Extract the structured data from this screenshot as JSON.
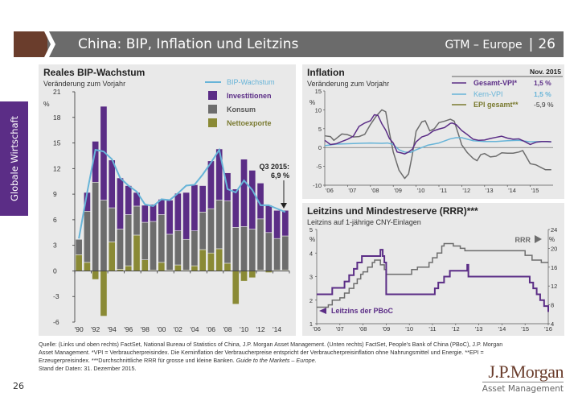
{
  "header": {
    "title": "China: BIP, Inflation und Leitzins",
    "series_label": "GTM – Europe",
    "separator": "|",
    "page": "26"
  },
  "sidebar": {
    "label": "Globale Wirtschaft"
  },
  "colors": {
    "brown": "#6a3d2c",
    "header_gray": "#6b6b6b",
    "purple": "#5b2d86",
    "gray": "#6d6d6d",
    "olive": "#8a8a35",
    "light_blue": "#67b4d8",
    "panel_bg": "#e9e9e9"
  },
  "chart_data": [
    {
      "id": "gdp",
      "type": "bar",
      "title": "Reales BIP-Wachstum",
      "subtitle": "Veränderung zum Vorjahr",
      "ylabel": "%",
      "ylim": [
        -6,
        21
      ],
      "yticks": [
        -6,
        -3,
        0,
        3,
        6,
        9,
        12,
        15,
        18,
        21
      ],
      "ytick_labels": [
        "-6",
        "-3",
        "0",
        "3",
        "6",
        "9",
        "12",
        "15",
        "18",
        "21"
      ],
      "xtick_labels": [
        "'90",
        "'92",
        "'94",
        "'96",
        "'98",
        "'00",
        "'02",
        "'04",
        "'06",
        "'08",
        "'10",
        "'12",
        "'14"
      ],
      "categories": [
        1990,
        1991,
        1992,
        1993,
        1994,
        1995,
        1996,
        1997,
        1998,
        1999,
        2000,
        2001,
        2002,
        2003,
        2004,
        2005,
        2006,
        2007,
        2008,
        2009,
        2010,
        2011,
        2012,
        2013,
        2014,
        2015
      ],
      "stacked": true,
      "series": [
        {
          "name": "Nettoexporte",
          "color": "#8a8a35",
          "values": [
            1.9,
            1.0,
            -1.0,
            -5.3,
            3.4,
            0.2,
            0.6,
            4.2,
            1.3,
            0.1,
            1.0,
            0.1,
            0.7,
            0.1,
            0.6,
            2.5,
            2.1,
            2.6,
            0.9,
            -3.9,
            -1.2,
            -0.8,
            0.1,
            -0.2,
            0.1,
            0.1
          ]
        },
        {
          "name": "Konsum",
          "color": "#6d6d6d",
          "values": [
            1.8,
            6.0,
            10.4,
            8.3,
            4.0,
            4.7,
            6.0,
            3.4,
            4.4,
            5.7,
            5.6,
            4.2,
            4.0,
            3.6,
            4.1,
            4.4,
            5.2,
            5.7,
            7.3,
            5.1,
            5.2,
            4.9,
            6.0,
            4.5,
            3.7,
            4.0
          ]
        },
        {
          "name": "Investitionen",
          "color": "#5b2d86",
          "values": [
            0.0,
            2.2,
            4.8,
            11.0,
            5.6,
            6.0,
            3.4,
            1.6,
            2.0,
            2.0,
            1.8,
            4.0,
            4.4,
            5.5,
            5.4,
            3.1,
            5.6,
            6.0,
            3.3,
            4.5,
            7.9,
            6.9,
            4.2,
            3.2,
            3.3,
            3.0
          ]
        }
      ],
      "line": {
        "name": "BIP-Wachstum",
        "color": "#67b4d8",
        "values": [
          3.8,
          9.2,
          14.2,
          14.0,
          13.1,
          10.9,
          10.0,
          9.3,
          7.8,
          7.6,
          8.4,
          8.3,
          9.1,
          10.0,
          10.1,
          11.3,
          12.7,
          14.2,
          9.6,
          9.2,
          10.6,
          9.5,
          7.7,
          7.7,
          7.3,
          6.9
        ]
      },
      "legend": [
        "BIP-Wachstum",
        "Investitionen",
        "Konsum",
        "Nettoexporte"
      ],
      "legend_placement": "top-right",
      "annotation": {
        "line1": "Q3 2015:",
        "line2": "6,9 %"
      }
    },
    {
      "id": "inflation",
      "type": "line",
      "title": "Inflation",
      "subtitle": "Veränderung zum Vorjahr",
      "ylabel": "%",
      "ylim": [
        -10,
        15
      ],
      "yticks": [
        -10,
        -5,
        0,
        5,
        10,
        15
      ],
      "ytick_labels": [
        "-10",
        "-5",
        "0",
        "5",
        "10",
        "15"
      ],
      "xlim": [
        2006,
        2016
      ],
      "xtick_labels": [
        "'06",
        "'07",
        "'08",
        "'09",
        "'10",
        "'11",
        "'12",
        "'13",
        "'14",
        "'15"
      ],
      "table_header": "Nov. 2015",
      "legend_placement": "top-right",
      "series": [
        {
          "name": "Gesamt-VPI*",
          "latest": "1,5 %",
          "color": "#5b2d86",
          "x": [
            2006.0,
            2006.25,
            2006.5,
            2006.75,
            2007.0,
            2007.25,
            2007.5,
            2007.75,
            2008.0,
            2008.17,
            2008.33,
            2008.5,
            2008.67,
            2008.83,
            2009.0,
            2009.17,
            2009.33,
            2009.5,
            2009.67,
            2009.83,
            2010.0,
            2010.25,
            2010.5,
            2010.75,
            2011.0,
            2011.25,
            2011.5,
            2011.58,
            2011.75,
            2012.0,
            2012.25,
            2012.5,
            2012.75,
            2013.0,
            2013.25,
            2013.5,
            2013.75,
            2014.0,
            2014.25,
            2014.5,
            2014.75,
            2015.0,
            2015.25,
            2015.5,
            2015.75,
            2015.92
          ],
          "y": [
            1.9,
            0.8,
            1.0,
            1.6,
            2.2,
            3.0,
            5.6,
            6.5,
            7.1,
            8.7,
            8.5,
            6.3,
            4.6,
            2.4,
            1.2,
            -1.2,
            -1.4,
            -1.7,
            -1.2,
            -0.5,
            1.5,
            2.8,
            3.3,
            4.4,
            4.9,
            5.3,
            6.4,
            6.5,
            6.1,
            4.5,
            3.4,
            2.2,
            1.9,
            2.0,
            2.4,
            2.7,
            3.0,
            2.5,
            2.2,
            2.3,
            1.6,
            0.8,
            1.4,
            1.6,
            1.6,
            1.5
          ]
        },
        {
          "name": "Kern-VPI",
          "latest": "1,5 %",
          "color": "#67b4d8",
          "x": [
            2006.0,
            2006.5,
            2007.0,
            2007.5,
            2008.0,
            2008.5,
            2008.75,
            2009.0,
            2009.25,
            2009.5,
            2009.75,
            2010.0,
            2010.5,
            2011.0,
            2011.5,
            2011.75,
            2012.0,
            2012.5,
            2013.0,
            2013.5,
            2014.0,
            2014.5,
            2015.0,
            2015.5,
            2015.92
          ],
          "y": [
            0.5,
            0.9,
            1.0,
            1.1,
            1.2,
            1.1,
            1.2,
            0.8,
            -0.6,
            -1.2,
            -1.3,
            -0.6,
            0.6,
            1.2,
            2.3,
            2.6,
            2.6,
            1.8,
            1.6,
            1.6,
            1.8,
            1.9,
            1.5,
            1.6,
            1.5
          ]
        },
        {
          "name": "EPI gesamt**",
          "latest": "-5,9 %",
          "color": "#6d6d6d",
          "x": [
            2006.0,
            2006.25,
            2006.4,
            2006.75,
            2007.0,
            2007.25,
            2007.5,
            2007.75,
            2008.0,
            2008.25,
            2008.5,
            2008.67,
            2008.83,
            2009.0,
            2009.25,
            2009.5,
            2009.67,
            2009.83,
            2010.0,
            2010.25,
            2010.4,
            2010.6,
            2010.8,
            2011.0,
            2011.25,
            2011.5,
            2011.67,
            2011.83,
            2012.0,
            2012.25,
            2012.5,
            2012.67,
            2012.83,
            2013.0,
            2013.25,
            2013.5,
            2013.75,
            2014.0,
            2014.25,
            2014.5,
            2014.67,
            2014.83,
            2015.0,
            2015.25,
            2015.5,
            2015.67,
            2015.92
          ],
          "y": [
            3.1,
            2.9,
            1.9,
            3.6,
            3.4,
            2.8,
            2.9,
            3.5,
            6.1,
            8.3,
            10.0,
            9.5,
            4.0,
            -1.2,
            -6.0,
            -8.2,
            -7.0,
            -2.1,
            4.3,
            6.8,
            7.1,
            4.4,
            5.0,
            6.6,
            7.0,
            7.5,
            7.0,
            4.0,
            0.7,
            -1.4,
            -2.9,
            -3.5,
            -1.9,
            -1.6,
            -2.5,
            -2.3,
            -1.4,
            -1.5,
            -1.5,
            -1.2,
            -0.8,
            -2.5,
            -4.3,
            -4.6,
            -5.4,
            -5.9,
            -5.9
          ]
        }
      ]
    },
    {
      "id": "policy",
      "type": "line",
      "title": "Leitzins und Mindestreserve (RRR)***",
      "subtitle": "Leitzins auf 1-jährige CNY-Einlagen",
      "ylabel": "%",
      "y2label": "%",
      "ylim": [
        1,
        5
      ],
      "yticks": [
        1,
        2,
        3,
        4,
        5
      ],
      "ytick_labels": [
        "1",
        "2",
        "3",
        "4",
        "5"
      ],
      "y2lim": [
        4,
        24
      ],
      "y2ticks": [
        4,
        8,
        12,
        16,
        20,
        24
      ],
      "y2tick_labels": [
        "4",
        "8",
        "12",
        "16",
        "20",
        "24"
      ],
      "xlim": [
        2006,
        2016
      ],
      "xtick_labels": [
        "'06",
        "'07",
        "'08",
        "'09",
        "'10",
        "'11",
        "'12",
        "'13",
        "'14",
        "'15",
        "'16"
      ],
      "series": [
        {
          "name": "Leitzins der PBoC",
          "axis": "left",
          "color": "#5b2d86",
          "step": true,
          "x": [
            2006.0,
            2006.67,
            2007.2,
            2007.4,
            2007.6,
            2007.75,
            2007.95,
            2008.75,
            2008.85,
            2008.92,
            2009.0,
            2010.8,
            2011.1,
            2011.25,
            2011.5,
            2011.75,
            2012.5,
            2012.55,
            2014.85,
            2015.2,
            2015.35,
            2015.5,
            2015.65,
            2015.82,
            2016.0
          ],
          "y": [
            2.25,
            2.52,
            2.79,
            3.06,
            3.33,
            3.6,
            3.87,
            4.14,
            3.87,
            3.6,
            2.25,
            2.25,
            2.5,
            2.75,
            3.0,
            3.25,
            3.5,
            3.0,
            3.0,
            2.75,
            2.5,
            2.25,
            2.0,
            1.75,
            1.5
          ]
        },
        {
          "name": "RRR",
          "axis": "right",
          "color": "#6d6d6d",
          "step": true,
          "x": [
            2006.0,
            2006.5,
            2006.67,
            2007.0,
            2007.2,
            2007.4,
            2007.6,
            2007.75,
            2007.9,
            2008.0,
            2008.2,
            2008.4,
            2008.5,
            2008.75,
            2008.92,
            2009.0,
            2010.0,
            2010.1,
            2010.35,
            2010.85,
            2011.0,
            2011.2,
            2011.4,
            2011.5,
            2011.9,
            2012.2,
            2012.4,
            2014.8,
            2015.0,
            2015.3,
            2015.7,
            2016.0
          ],
          "y": [
            7.5,
            8.0,
            9.0,
            9.5,
            10.5,
            11.5,
            12.5,
            13.5,
            14.5,
            15.0,
            16.0,
            17.0,
            17.5,
            16.5,
            15.5,
            14.5,
            14.5,
            15.5,
            16.0,
            17.0,
            18.0,
            19.0,
            20.5,
            21.0,
            20.5,
            20.0,
            19.5,
            19.5,
            18.5,
            17.5,
            17.0,
            17.0
          ]
        }
      ],
      "labels": {
        "rrr": "RRR",
        "leitzins": "Leitzins der PBoC"
      }
    }
  ],
  "footer": {
    "source_main": "Quelle: (Links und oben rechts) FactSet, National Bureau of Statistics of China, J.P. Morgan Asset Management. (Unten rechts) FactSet, People's Bank of China (PBoC), J.P. Morgan Asset Management. *VPI = Verbraucherpreisindex. Die Kerninflation der Verbraucherpreise entspricht der Verbraucherpreisinflation ohne Nahrungsmittel und Energie. **EPI = Erzeugerpreisindex. ***Durchschnittliche RRR für grosse und kleine Banken. ",
    "source_italic": "Guide to the Markets – Europe.",
    "date": "Stand der Daten: 31. Dezember 2015."
  },
  "page_number": "26",
  "logo": {
    "name": "J.P.Morgan",
    "sub": "Asset Management"
  }
}
